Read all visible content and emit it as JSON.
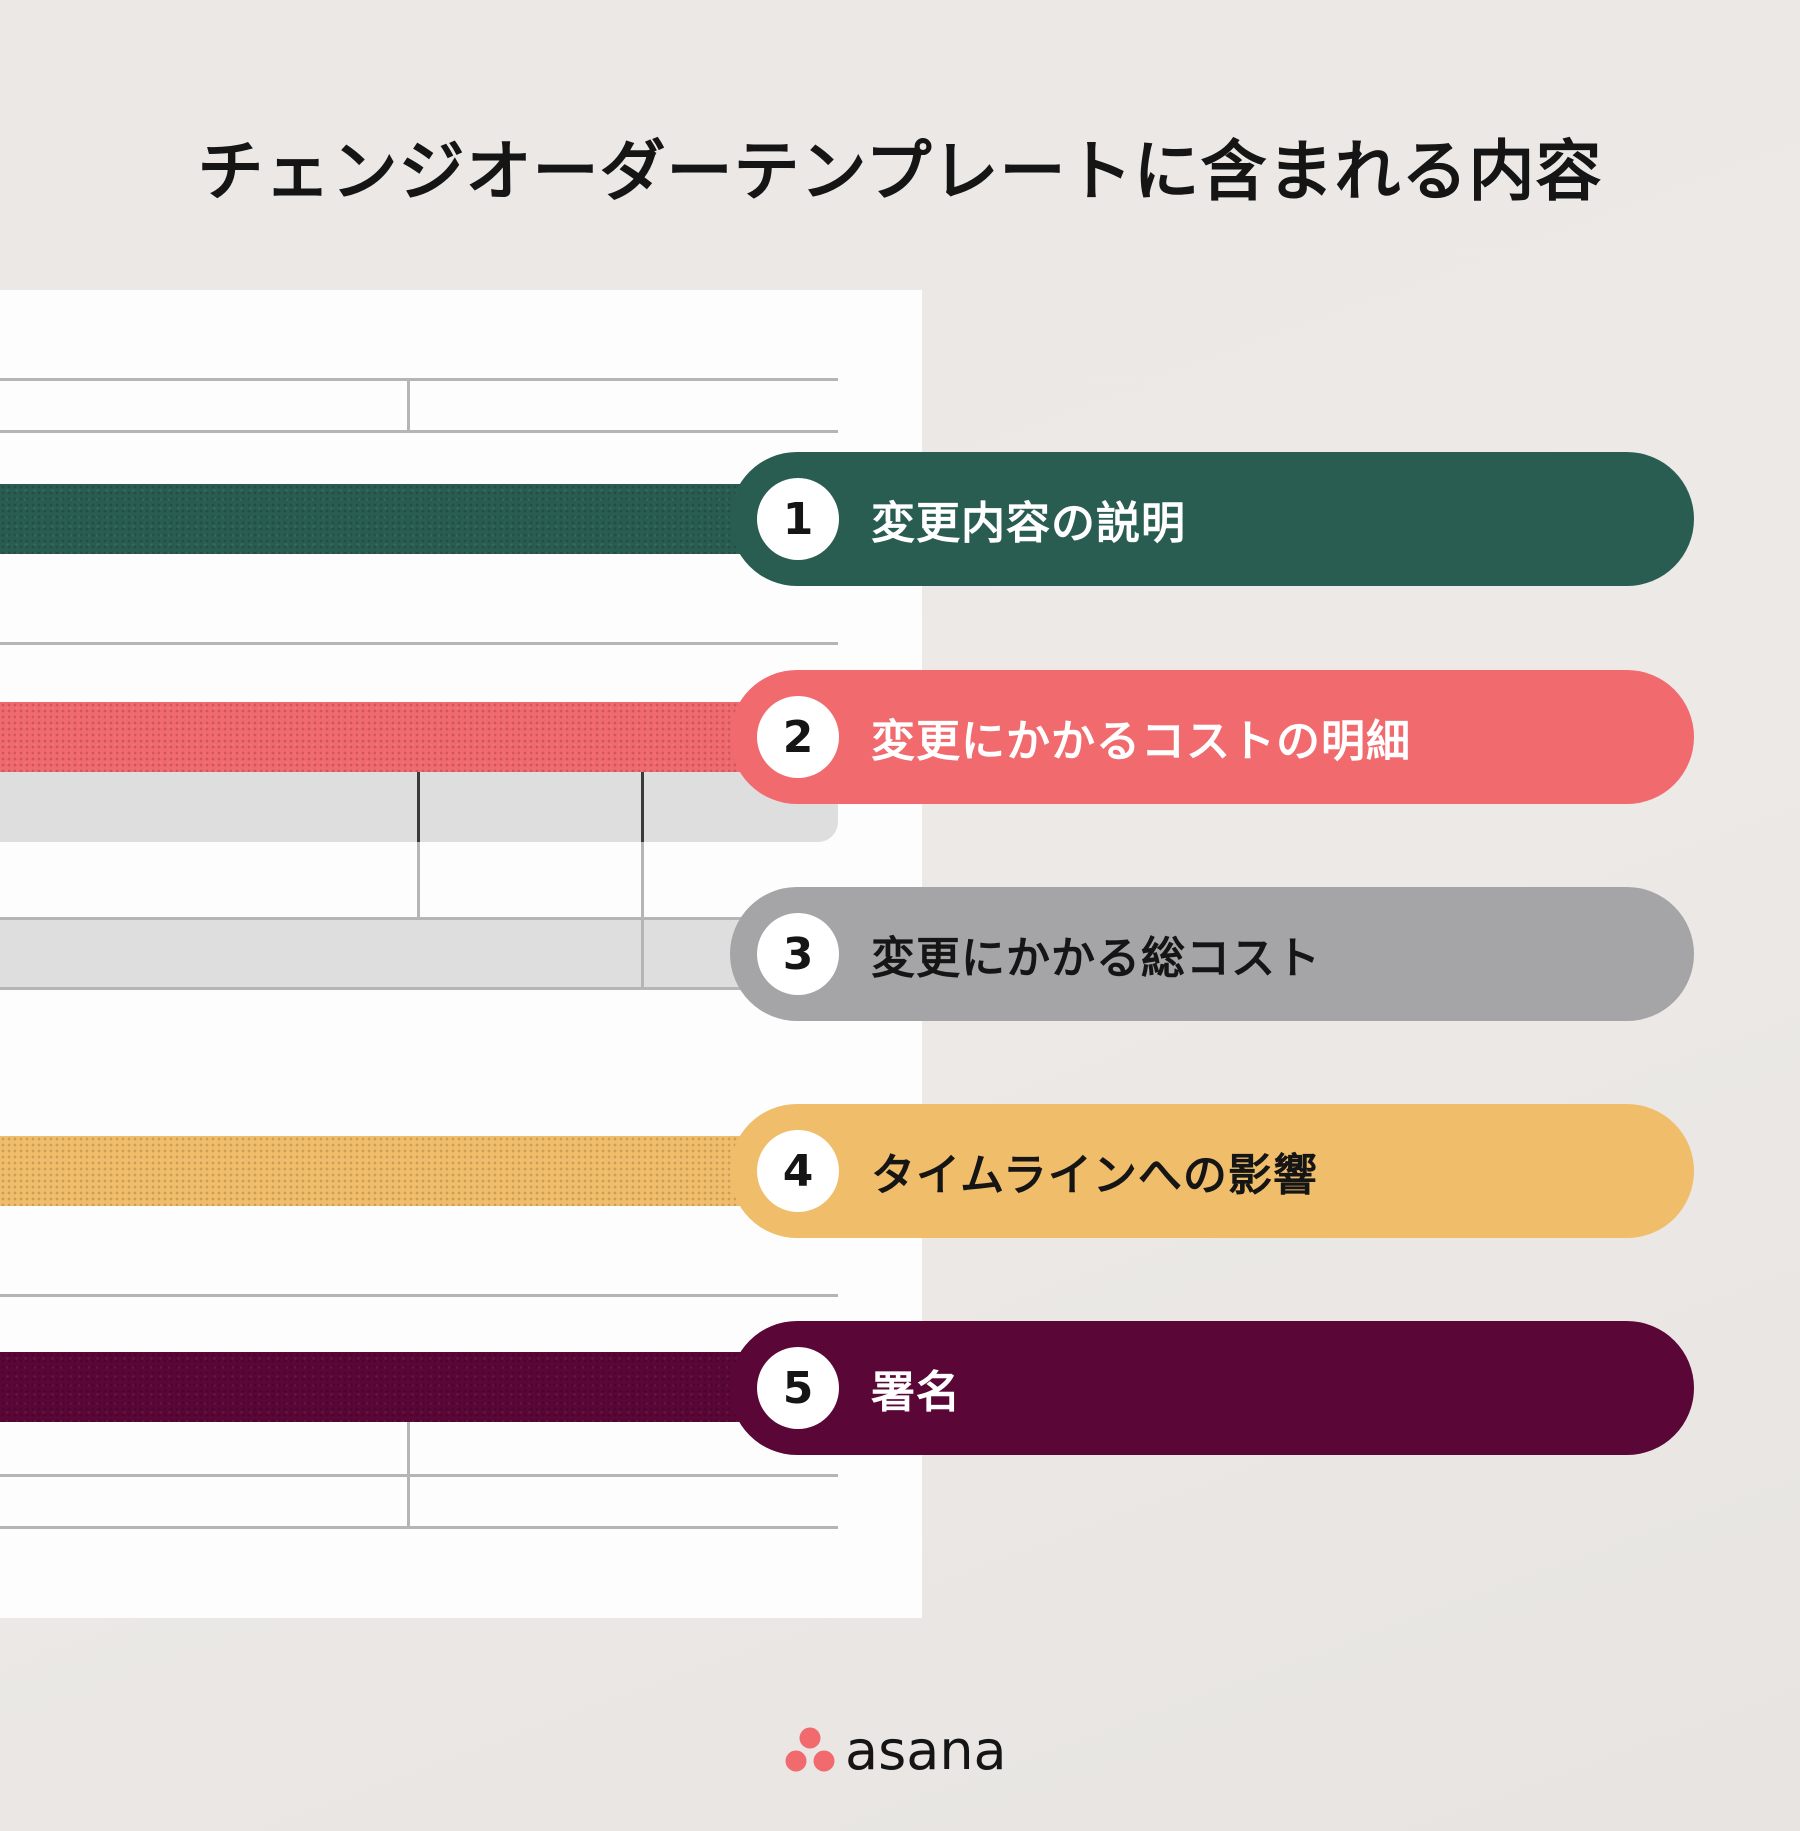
{
  "title": "チェンジオーダーテンプレートに含まれる内容",
  "items": [
    {
      "number": "1",
      "label": "変更内容の説明",
      "color": "#2a5d52",
      "text_color": "#ffffff"
    },
    {
      "number": "2",
      "label": "変更にかかるコストの明細",
      "color": "#f06a6e",
      "text_color": "#ffffff"
    },
    {
      "number": "3",
      "label": "変更にかかる総コスト",
      "color": "#a5a4a6",
      "text_color": "#151515"
    },
    {
      "number": "4",
      "label": "タイムラインへの影響",
      "color": "#f0bd6a",
      "text_color": "#151515"
    },
    {
      "number": "5",
      "label": "署名",
      "color": "#5a0636",
      "text_color": "#ffffff"
    }
  ],
  "logo": {
    "text": "asana",
    "icon": "asana-dots-icon",
    "icon_color": "#f06a6e"
  }
}
